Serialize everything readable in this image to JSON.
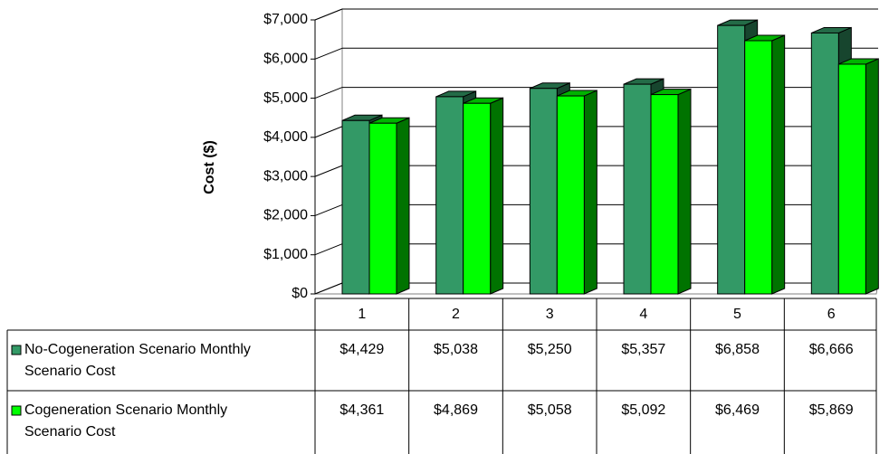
{
  "chart_data": {
    "type": "bar3d",
    "y_axis_label": "Cost ($)",
    "categories": [
      "1",
      "2",
      "3",
      "4",
      "5",
      "6"
    ],
    "series": [
      {
        "name": "No-Cogeneration Scenario Monthly Scenario Cost",
        "color": "#339966",
        "values": [
          4429,
          5038,
          5250,
          5357,
          6858,
          6666
        ],
        "value_labels": [
          "$4,429",
          "$5,038",
          "$5,250",
          "$5,357",
          "$6,858",
          "$6,666"
        ]
      },
      {
        "name": "Cogeneration Scenario Monthly Scenario Cost",
        "color": "#00ff00",
        "values": [
          4361,
          4869,
          5058,
          5092,
          6469,
          5869
        ],
        "value_labels": [
          "$4,361",
          "$4,869",
          "$5,058",
          "$5,092",
          "$6,469",
          "$5,869"
        ]
      }
    ],
    "ylim": [
      0,
      7000
    ],
    "yticks": [
      {
        "value": 0,
        "label": "$0"
      },
      {
        "value": 1000,
        "label": "$1,000"
      },
      {
        "value": 2000,
        "label": "$2,000"
      },
      {
        "value": 3000,
        "label": "$3,000"
      },
      {
        "value": 4000,
        "label": "$4,000"
      },
      {
        "value": 5000,
        "label": "$5,000"
      },
      {
        "value": 6000,
        "label": "$6,000"
      },
      {
        "value": 7000,
        "label": "$7,000"
      }
    ],
    "grid": true
  }
}
